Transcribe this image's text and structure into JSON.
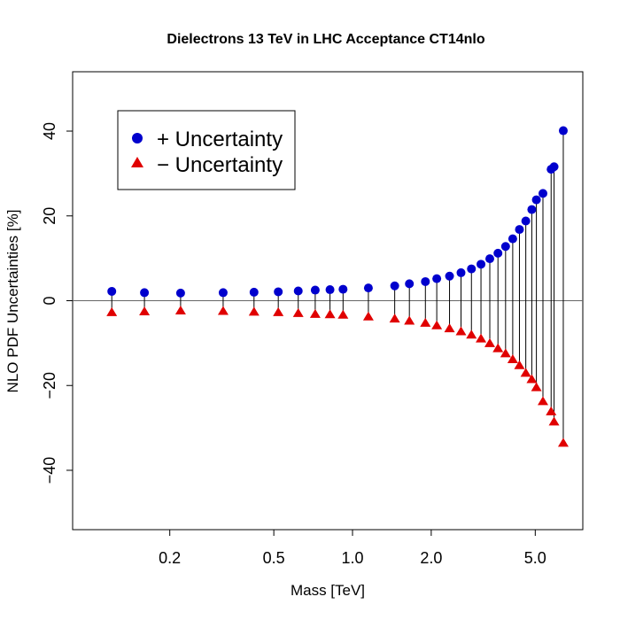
{
  "chart_data": {
    "type": "scatter",
    "title": "Dielectrons 13 TeV in LHC Acceptance CT14nlo",
    "xlabel": "Mass [TeV]",
    "ylabel": "NLO  PDF Uncertainties [%]",
    "x_scale": "log",
    "xlim": [
      0.085,
      7.6
    ],
    "ylim": [
      -54,
      54
    ],
    "x_ticks": [
      0.2,
      0.5,
      1.0,
      2.0,
      5.0
    ],
    "x_tick_labels": [
      "0.2",
      "0.5",
      "1.0",
      "2.0",
      "5.0"
    ],
    "y_ticks": [
      -40,
      -20,
      0,
      20,
      40
    ],
    "y_tick_labels": [
      "−40",
      "−20",
      "0",
      "20",
      "40"
    ],
    "reference_line_y": 0,
    "legend": {
      "position": "top-left"
    },
    "x": [
      0.12,
      0.16,
      0.22,
      0.32,
      0.42,
      0.52,
      0.62,
      0.72,
      0.82,
      0.92,
      1.15,
      1.45,
      1.65,
      1.9,
      2.1,
      2.35,
      2.6,
      2.85,
      3.1,
      3.35,
      3.6,
      3.85,
      4.1,
      4.35,
      4.6,
      4.85,
      5.05,
      5.35,
      5.75,
      5.9,
      6.4
    ],
    "series": [
      {
        "name": "+ Uncertainty",
        "marker": "circle",
        "color": "#0000CD",
        "values": [
          2.2,
          1.9,
          1.8,
          1.9,
          2.0,
          2.1,
          2.3,
          2.5,
          2.6,
          2.7,
          3.0,
          3.5,
          4.0,
          4.5,
          5.2,
          5.8,
          6.6,
          7.5,
          8.6,
          9.9,
          11.2,
          12.8,
          14.6,
          16.8,
          18.8,
          21.5,
          23.8,
          25.3,
          31.0,
          31.6,
          40.1
        ]
      },
      {
        "name": "− Uncertainty",
        "marker": "triangle",
        "color": "#E00000",
        "values": [
          -2.8,
          -2.6,
          -2.4,
          -2.5,
          -2.7,
          -2.8,
          -3.0,
          -3.2,
          -3.3,
          -3.4,
          -3.8,
          -4.3,
          -4.8,
          -5.3,
          -5.9,
          -6.6,
          -7.3,
          -8.1,
          -9.0,
          -10.1,
          -11.3,
          -12.5,
          -13.9,
          -15.3,
          -17.1,
          -18.6,
          -20.5,
          -23.8,
          -26.2,
          -28.6,
          -33.6
        ]
      }
    ]
  }
}
